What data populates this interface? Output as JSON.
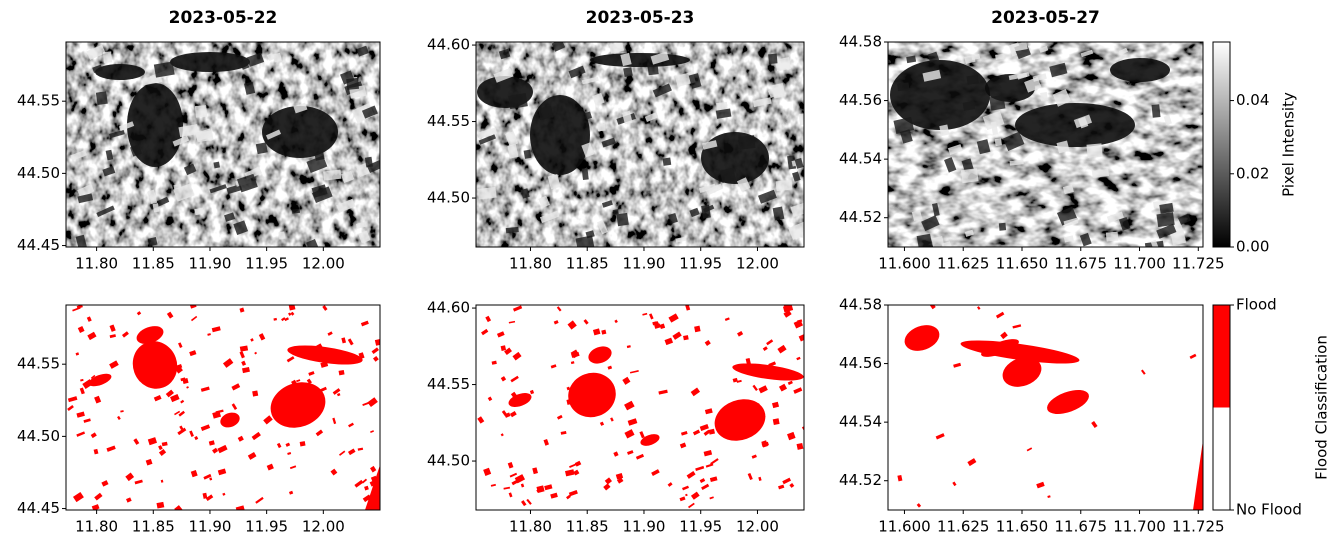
{
  "chart_data": [
    {
      "type": "image",
      "title": "2023-05-22",
      "xlim": [
        11.773,
        12.05
      ],
      "ylim": [
        44.449,
        44.591
      ],
      "xticks": [
        {
          "value": 11.8,
          "label": "11.80"
        },
        {
          "value": 11.85,
          "label": "11.85"
        },
        {
          "value": 11.9,
          "label": "11.90"
        },
        {
          "value": 11.95,
          "label": "11.95"
        },
        {
          "value": 12.0,
          "label": "12.00"
        }
      ],
      "yticks": [
        {
          "value": 44.45,
          "label": "44.45"
        },
        {
          "value": 44.5,
          "label": "44.50"
        },
        {
          "value": 44.55,
          "label": "44.55"
        }
      ]
    },
    {
      "type": "image",
      "title": "2023-05-23",
      "xlim": [
        11.752,
        12.041
      ],
      "ylim": [
        44.468,
        44.602
      ],
      "xticks": [
        {
          "value": 11.8,
          "label": "11.80"
        },
        {
          "value": 11.85,
          "label": "11.85"
        },
        {
          "value": 11.9,
          "label": "11.90"
        },
        {
          "value": 11.95,
          "label": "11.95"
        },
        {
          "value": 12.0,
          "label": "12.00"
        }
      ],
      "yticks": [
        {
          "value": 44.5,
          "label": "44.50"
        },
        {
          "value": 44.55,
          "label": "44.55"
        },
        {
          "value": 44.6,
          "label": "44.60"
        }
      ]
    },
    {
      "type": "image",
      "title": "2023-05-27",
      "xlim": [
        11.593,
        11.727
      ],
      "ylim": [
        44.51,
        44.58
      ],
      "xticks": [
        {
          "value": 11.6,
          "label": "11.600"
        },
        {
          "value": 11.625,
          "label": "11.625"
        },
        {
          "value": 11.65,
          "label": "11.650"
        },
        {
          "value": 11.675,
          "label": "11.675"
        },
        {
          "value": 11.7,
          "label": "11.700"
        },
        {
          "value": 11.725,
          "label": "11.725"
        }
      ],
      "yticks": [
        {
          "value": 44.52,
          "label": "44.52"
        },
        {
          "value": 44.54,
          "label": "44.54"
        },
        {
          "value": 44.56,
          "label": "44.56"
        },
        {
          "value": 44.58,
          "label": "44.58"
        }
      ],
      "colorbar": {
        "label": "Pixel Intensity",
        "lim": [
          0,
          0.056
        ],
        "colors": [
          "#000000",
          "#ffffff"
        ],
        "ticks": [
          {
            "value": 0,
            "label": "0.00"
          },
          {
            "value": 0.02,
            "label": "0.02"
          },
          {
            "value": 0.04,
            "label": "0.04"
          }
        ]
      }
    },
    {
      "type": "flood_map",
      "xlim": [
        11.773,
        12.05
      ],
      "ylim": [
        44.449,
        44.591
      ],
      "xticks": [
        {
          "value": 11.8,
          "label": "11.80"
        },
        {
          "value": 11.85,
          "label": "11.85"
        },
        {
          "value": 11.9,
          "label": "11.90"
        },
        {
          "value": 11.95,
          "label": "11.95"
        },
        {
          "value": 12.0,
          "label": "12.00"
        }
      ],
      "yticks": [
        {
          "value": 44.45,
          "label": "44.45"
        },
        {
          "value": 44.5,
          "label": "44.50"
        },
        {
          "value": 44.55,
          "label": "44.55"
        }
      ]
    },
    {
      "type": "flood_map",
      "xlim": [
        11.752,
        12.041
      ],
      "ylim": [
        44.468,
        44.602
      ],
      "xticks": [
        {
          "value": 11.8,
          "label": "11.80"
        },
        {
          "value": 11.85,
          "label": "11.85"
        },
        {
          "value": 11.9,
          "label": "11.90"
        },
        {
          "value": 11.95,
          "label": "11.95"
        },
        {
          "value": 12.0,
          "label": "12.00"
        }
      ],
      "yticks": [
        {
          "value": 44.5,
          "label": "44.50"
        },
        {
          "value": 44.55,
          "label": "44.55"
        },
        {
          "value": 44.6,
          "label": "44.60"
        }
      ]
    },
    {
      "type": "flood_map",
      "xlim": [
        11.593,
        11.727
      ],
      "ylim": [
        44.51,
        44.58
      ],
      "xticks": [
        {
          "value": 11.6,
          "label": "11.600"
        },
        {
          "value": 11.625,
          "label": "11.625"
        },
        {
          "value": 11.65,
          "label": "11.650"
        },
        {
          "value": 11.675,
          "label": "11.675"
        },
        {
          "value": 11.7,
          "label": "11.700"
        },
        {
          "value": 11.725,
          "label": "11.725"
        }
      ],
      "yticks": [
        {
          "value": 44.52,
          "label": "44.52"
        },
        {
          "value": 44.54,
          "label": "44.54"
        },
        {
          "value": 44.56,
          "label": "44.56"
        },
        {
          "value": 44.58,
          "label": "44.58"
        }
      ],
      "colorbar": {
        "label": "Flood Classification",
        "lim": [
          0,
          1
        ],
        "colors": [
          "#ffffff",
          "#ff0000"
        ],
        "ticks": [
          {
            "value": 0,
            "label": "No Flood"
          },
          {
            "value": 1,
            "label": "Flood"
          }
        ]
      }
    }
  ]
}
